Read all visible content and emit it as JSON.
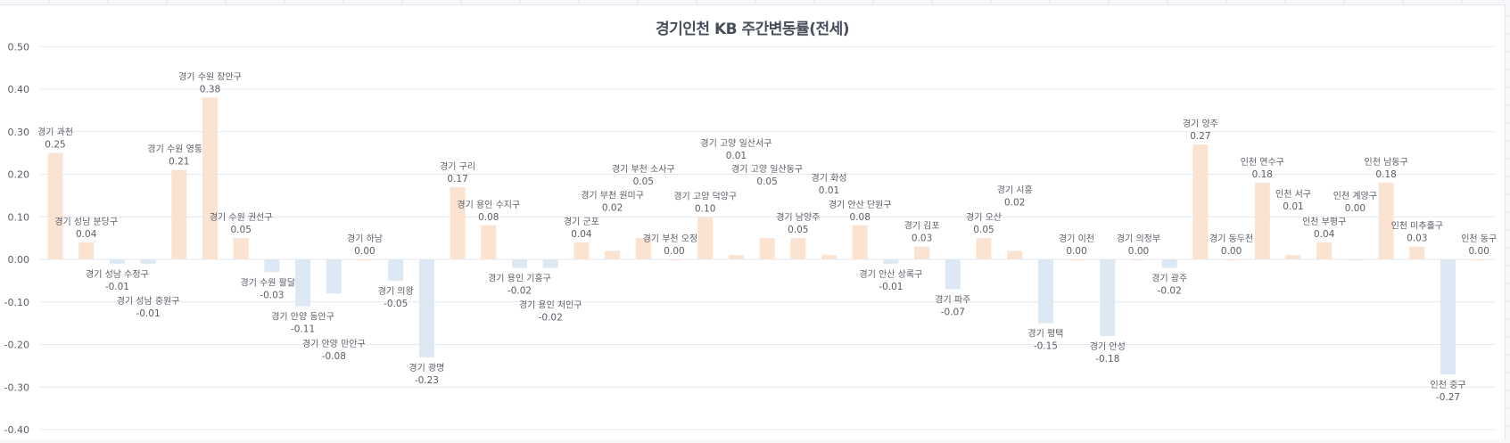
{
  "chart_data": {
    "type": "bar",
    "title": "경기인천 KB 주간변동률(전세)",
    "xlabel": "",
    "ylabel": "",
    "ylim": [
      -0.4,
      0.5
    ],
    "yticks": [
      "0.50",
      "0.40",
      "0.30",
      "0.20",
      "0.10",
      "0.00",
      "-0.10",
      "-0.20",
      "-0.30",
      "-0.40"
    ],
    "ytick_values": [
      0.5,
      0.4,
      0.3,
      0.2,
      0.1,
      0,
      -0.1,
      -0.2,
      -0.3,
      -0.4
    ],
    "grid": true,
    "legend": "none",
    "colors": {
      "positive": "#fbe3d2",
      "negative": "#dde8f5",
      "text": "#5a5e66",
      "grid": "#e4e8ef"
    },
    "categories": [
      "경기 과천",
      "경기 성남 분당구",
      "경기 성남 수정구",
      "경기 성남 중원구",
      "경기 수원 영통구",
      "경기 수원 장안구",
      "경기 수원 권선구",
      "경기 수원 팔달구",
      "경기 안양 동안구",
      "경기 안양 만안구",
      "경기 하남",
      "경기 의왕",
      "경기 광명",
      "경기 구리",
      "경기 용인 수지구",
      "경기 용인 기흥구",
      "경기 용인 처인구",
      "경기 군포",
      "경기 부천 원미구",
      "경기 부천 소사구",
      "경기 부천 오정구",
      "경기 고양 덕양구",
      "경기 고양 일산서구",
      "경기 고양 일산동구",
      "경기 남양주",
      "경기 화성",
      "경기 안산 단원구",
      "경기 안산 상록구",
      "경기 김포",
      "경기 파주",
      "경기 오산",
      "경기 시흥",
      "경기 평택",
      "경기 이천",
      "경기 안성",
      "경기 의정부",
      "경기 광주",
      "경기 양주",
      "경기 동두천",
      "인천 연수구",
      "인천 서구",
      "인천 부평구",
      "인천 계양구",
      "인천 남동구",
      "인천 미추홀구",
      "인천 중구",
      "인천 동구"
    ],
    "values": [
      0.25,
      0.04,
      -0.01,
      -0.01,
      0.21,
      0.38,
      0.05,
      -0.03,
      -0.11,
      -0.08,
      0.0,
      -0.05,
      -0.23,
      0.17,
      0.08,
      -0.02,
      -0.02,
      0.04,
      0.02,
      0.05,
      0.0,
      0.1,
      0.01,
      0.05,
      0.05,
      0.01,
      0.08,
      -0.01,
      0.03,
      -0.07,
      0.05,
      0.02,
      -0.15,
      0.0,
      -0.18,
      0.0,
      -0.02,
      0.27,
      0.0,
      0.18,
      0.01,
      0.04,
      0.0,
      0.18,
      0.03,
      -0.27,
      0.0
    ]
  }
}
